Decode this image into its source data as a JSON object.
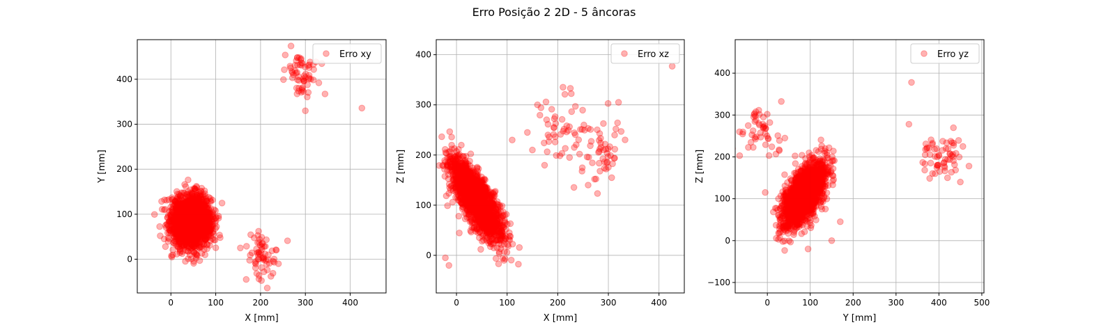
{
  "figure": {
    "suptitle": "Erro Posição 2 2D - 5 âncoras",
    "point_color": "#ff0000",
    "point_alpha": 0.3
  },
  "chart_data": [
    {
      "type": "scatter",
      "title": "",
      "xlabel": "X [mm]",
      "ylabel": "Y [mm]",
      "xlim": [
        -75,
        480
      ],
      "ylim": [
        -75,
        488
      ],
      "xticks": [
        0,
        100,
        200,
        300,
        400
      ],
      "yticks": [
        0,
        100,
        200,
        300,
        400
      ],
      "grid": true,
      "legend": {
        "label": "Erro xy",
        "placement": "top-right"
      },
      "clusters": [
        {
          "center": [
            45,
            85
          ],
          "spread": [
            22,
            28
          ],
          "rotation": 0,
          "count": 2000
        },
        {
          "center": [
            205,
            10
          ],
          "spread": [
            18,
            22
          ],
          "rotation": 0,
          "count": 60
        },
        {
          "center": [
            290,
            410
          ],
          "spread": [
            18,
            22
          ],
          "rotation": 0,
          "count": 60
        }
      ],
      "points": [
        [
          426,
          336
        ],
        [
          300,
          330
        ],
        [
          268,
          474
        ],
        [
          168,
          -45
        ],
        [
          215,
          -64
        ],
        [
          -15,
          45
        ],
        [
          110,
          48
        ],
        [
          155,
          25
        ],
        [
          240,
          -10
        ],
        [
          330,
          392
        ],
        [
          255,
          454
        ]
      ]
    },
    {
      "type": "scatter",
      "title": "",
      "xlabel": "X [mm]",
      "ylabel": "Z [mm]",
      "xlim": [
        -40,
        450
      ],
      "ylim": [
        -75,
        430
      ],
      "xticks": [
        0,
        100,
        200,
        300,
        400
      ],
      "yticks": [
        0,
        100,
        200,
        300,
        400
      ],
      "grid": true,
      "legend": {
        "label": "Erro xz",
        "placement": "top-right"
      },
      "clusters": [
        {
          "center": [
            40,
            110
          ],
          "spread": [
            14,
            45
          ],
          "rotation": 0.5,
          "count": 2000
        },
        {
          "center": [
            205,
            245
          ],
          "spread": [
            28,
            42
          ],
          "rotation": 0,
          "count": 50
        },
        {
          "center": [
            290,
            210
          ],
          "spread": [
            20,
            35
          ],
          "rotation": 0,
          "count": 50
        }
      ],
      "points": [
        [
          426,
          377
        ],
        [
          -22,
          -5
        ],
        [
          -15,
          -20
        ],
        [
          160,
          300
        ],
        [
          225,
          333
        ],
        [
          260,
          140
        ],
        [
          320,
          305
        ],
        [
          150,
          210
        ],
        [
          140,
          245
        ],
        [
          110,
          230
        ]
      ]
    },
    {
      "type": "scatter",
      "title": "",
      "xlabel": "Y [mm]",
      "ylabel": "Z [mm]",
      "xlim": [
        -75,
        505
      ],
      "ylim": [
        -125,
        480
      ],
      "xticks": [
        0,
        100,
        200,
        300,
        400,
        500
      ],
      "yticks": [
        -100,
        0,
        100,
        200,
        300,
        400
      ],
      "grid": true,
      "legend": {
        "label": "Erro yz",
        "placement": "top-right"
      },
      "clusters": [
        {
          "center": [
            85,
            110
          ],
          "spread": [
            18,
            42
          ],
          "rotation": -0.45,
          "count": 2000
        },
        {
          "center": [
            405,
            205
          ],
          "spread": [
            22,
            28
          ],
          "rotation": 0,
          "count": 60
        },
        {
          "center": [
            -10,
            255
          ],
          "spread": [
            22,
            30
          ],
          "rotation": 0,
          "count": 50
        }
      ],
      "points": [
        [
          336,
          378
        ],
        [
          330,
          278
        ],
        [
          470,
          178
        ],
        [
          450,
          140
        ],
        [
          420,
          150
        ],
        [
          -65,
          260
        ],
        [
          95,
          -20
        ],
        [
          150,
          0
        ],
        [
          170,
          45
        ],
        [
          -5,
          115
        ]
      ]
    }
  ]
}
